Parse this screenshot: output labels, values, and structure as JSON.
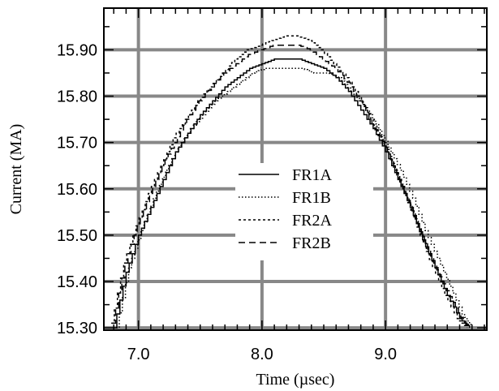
{
  "chart_data": {
    "type": "line",
    "title": "",
    "xlabel": "Time (µsec)",
    "ylabel": "Current (MA)",
    "xlim": [
      6.72,
      9.82
    ],
    "ylim": [
      15.295,
      15.99
    ],
    "x_ticks": [
      {
        "value": 7.0,
        "label": "7.0"
      },
      {
        "value": 8.0,
        "label": "8.0"
      },
      {
        "value": 9.0,
        "label": "9.0"
      }
    ],
    "y_ticks": [
      {
        "value": 15.3,
        "label": "15.30"
      },
      {
        "value": 15.4,
        "label": "15.40"
      },
      {
        "value": 15.5,
        "label": "15.50"
      },
      {
        "value": 15.6,
        "label": "15.60"
      },
      {
        "value": 15.7,
        "label": "15.70"
      },
      {
        "value": 15.8,
        "label": "15.80"
      },
      {
        "value": 15.9,
        "label": "15.90"
      }
    ],
    "grid": true,
    "grid_color": "#888888",
    "legend_position": "center",
    "series": [
      {
        "name": "FR1A",
        "style": "solid",
        "color": "#000000",
        "x": [
          6.8,
          6.9,
          7.0,
          7.1,
          7.2,
          7.3,
          7.4,
          7.5,
          7.6,
          7.7,
          7.8,
          7.9,
          8.0,
          8.1,
          8.2,
          8.3,
          8.4,
          8.5,
          8.6,
          8.7,
          8.8,
          8.9,
          9.0,
          9.1,
          9.2,
          9.3,
          9.4,
          9.5,
          9.6,
          9.68
        ],
        "y": [
          15.3,
          15.42,
          15.5,
          15.56,
          15.62,
          15.68,
          15.72,
          15.76,
          15.79,
          15.82,
          15.84,
          15.86,
          15.87,
          15.88,
          15.88,
          15.88,
          15.87,
          15.86,
          15.84,
          15.81,
          15.77,
          15.73,
          15.68,
          15.62,
          15.56,
          15.49,
          15.43,
          15.37,
          15.32,
          15.3
        ]
      },
      {
        "name": "FR1B",
        "style": "dotted",
        "color": "#000000",
        "x": [
          6.82,
          6.92,
          7.02,
          7.12,
          7.22,
          7.32,
          7.42,
          7.52,
          7.62,
          7.72,
          7.82,
          7.92,
          8.02,
          8.12,
          8.22,
          8.32,
          8.42,
          8.52,
          8.62,
          8.72,
          8.82,
          8.92,
          9.02,
          9.12,
          9.22,
          9.32,
          9.42,
          9.52,
          9.62,
          9.7
        ],
        "y": [
          15.3,
          15.43,
          15.51,
          15.58,
          15.64,
          15.69,
          15.73,
          15.76,
          15.79,
          15.81,
          15.83,
          15.85,
          15.86,
          15.86,
          15.86,
          15.86,
          15.85,
          15.85,
          15.84,
          15.81,
          15.78,
          15.74,
          15.69,
          15.64,
          15.58,
          15.51,
          15.45,
          15.39,
          15.33,
          15.3
        ]
      },
      {
        "name": "FR2A",
        "style": "dashdot",
        "color": "#000000",
        "x": [
          6.78,
          6.88,
          6.98,
          7.08,
          7.18,
          7.28,
          7.38,
          7.48,
          7.58,
          7.68,
          7.78,
          7.88,
          7.98,
          8.08,
          8.18,
          8.28,
          8.38,
          8.48,
          8.58,
          8.68,
          8.78,
          8.88,
          8.98,
          9.08,
          9.18,
          9.28,
          9.38,
          9.48,
          9.58,
          9.66
        ],
        "y": [
          15.31,
          15.44,
          15.52,
          15.59,
          15.65,
          15.71,
          15.75,
          15.79,
          15.82,
          15.85,
          15.88,
          15.9,
          15.91,
          15.92,
          15.93,
          15.93,
          15.92,
          15.9,
          15.87,
          15.84,
          15.8,
          15.75,
          15.7,
          15.64,
          15.57,
          15.5,
          15.43,
          15.37,
          15.32,
          15.3
        ]
      },
      {
        "name": "FR2B",
        "style": "dashed",
        "color": "#000000",
        "x": [
          6.79,
          6.89,
          6.99,
          7.09,
          7.19,
          7.29,
          7.39,
          7.49,
          7.59,
          7.69,
          7.79,
          7.89,
          7.99,
          8.09,
          8.19,
          8.29,
          8.39,
          8.49,
          8.59,
          8.69,
          8.79,
          8.89,
          8.99,
          9.09,
          9.19,
          9.29,
          9.39,
          9.49,
          9.59,
          9.67
        ],
        "y": [
          15.31,
          15.44,
          15.52,
          15.59,
          15.65,
          15.7,
          15.75,
          15.79,
          15.82,
          15.85,
          15.87,
          15.89,
          15.9,
          15.91,
          15.91,
          15.91,
          15.9,
          15.88,
          15.86,
          15.83,
          15.79,
          15.74,
          15.69,
          15.63,
          15.57,
          15.5,
          15.44,
          15.38,
          15.33,
          15.3
        ]
      }
    ]
  }
}
